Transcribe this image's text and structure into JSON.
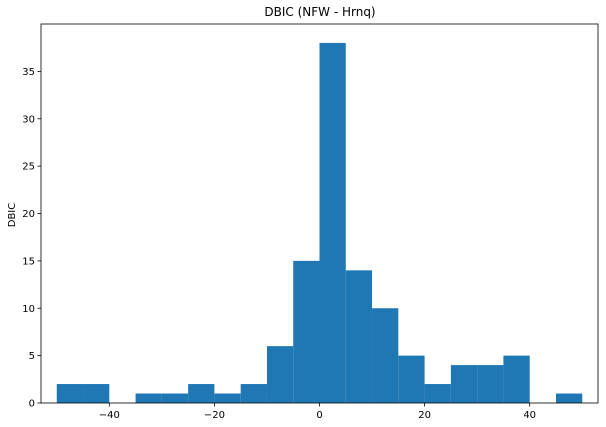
{
  "chart_data": {
    "type": "bar",
    "title": "DBIC (NFW - Hrnq)",
    "xlabel": "",
    "ylabel": "DBIC",
    "xlim": [
      -53,
      53
    ],
    "ylim": [
      0,
      40
    ],
    "bin_edges": [
      -50,
      -45,
      -40,
      -35,
      -30,
      -25,
      -20,
      -15,
      -10,
      -5,
      0,
      5,
      10,
      15,
      20,
      25,
      30,
      35,
      40,
      45,
      50
    ],
    "values": [
      2,
      2,
      0,
      1,
      1,
      2,
      1,
      2,
      6,
      15,
      38,
      14,
      10,
      5,
      2,
      4,
      4,
      5,
      0,
      1
    ],
    "bar_color": "#1f77b4",
    "x_ticks": [
      -40,
      -20,
      0,
      20,
      40
    ],
    "x_tick_labels": [
      "−40",
      "−20",
      "0",
      "20",
      "40"
    ],
    "y_ticks": [
      0,
      5,
      10,
      15,
      20,
      25,
      30,
      35
    ],
    "y_tick_labels": [
      "0",
      "5",
      "10",
      "15",
      "20",
      "25",
      "30",
      "35"
    ],
    "grid": false,
    "legend": "none"
  }
}
